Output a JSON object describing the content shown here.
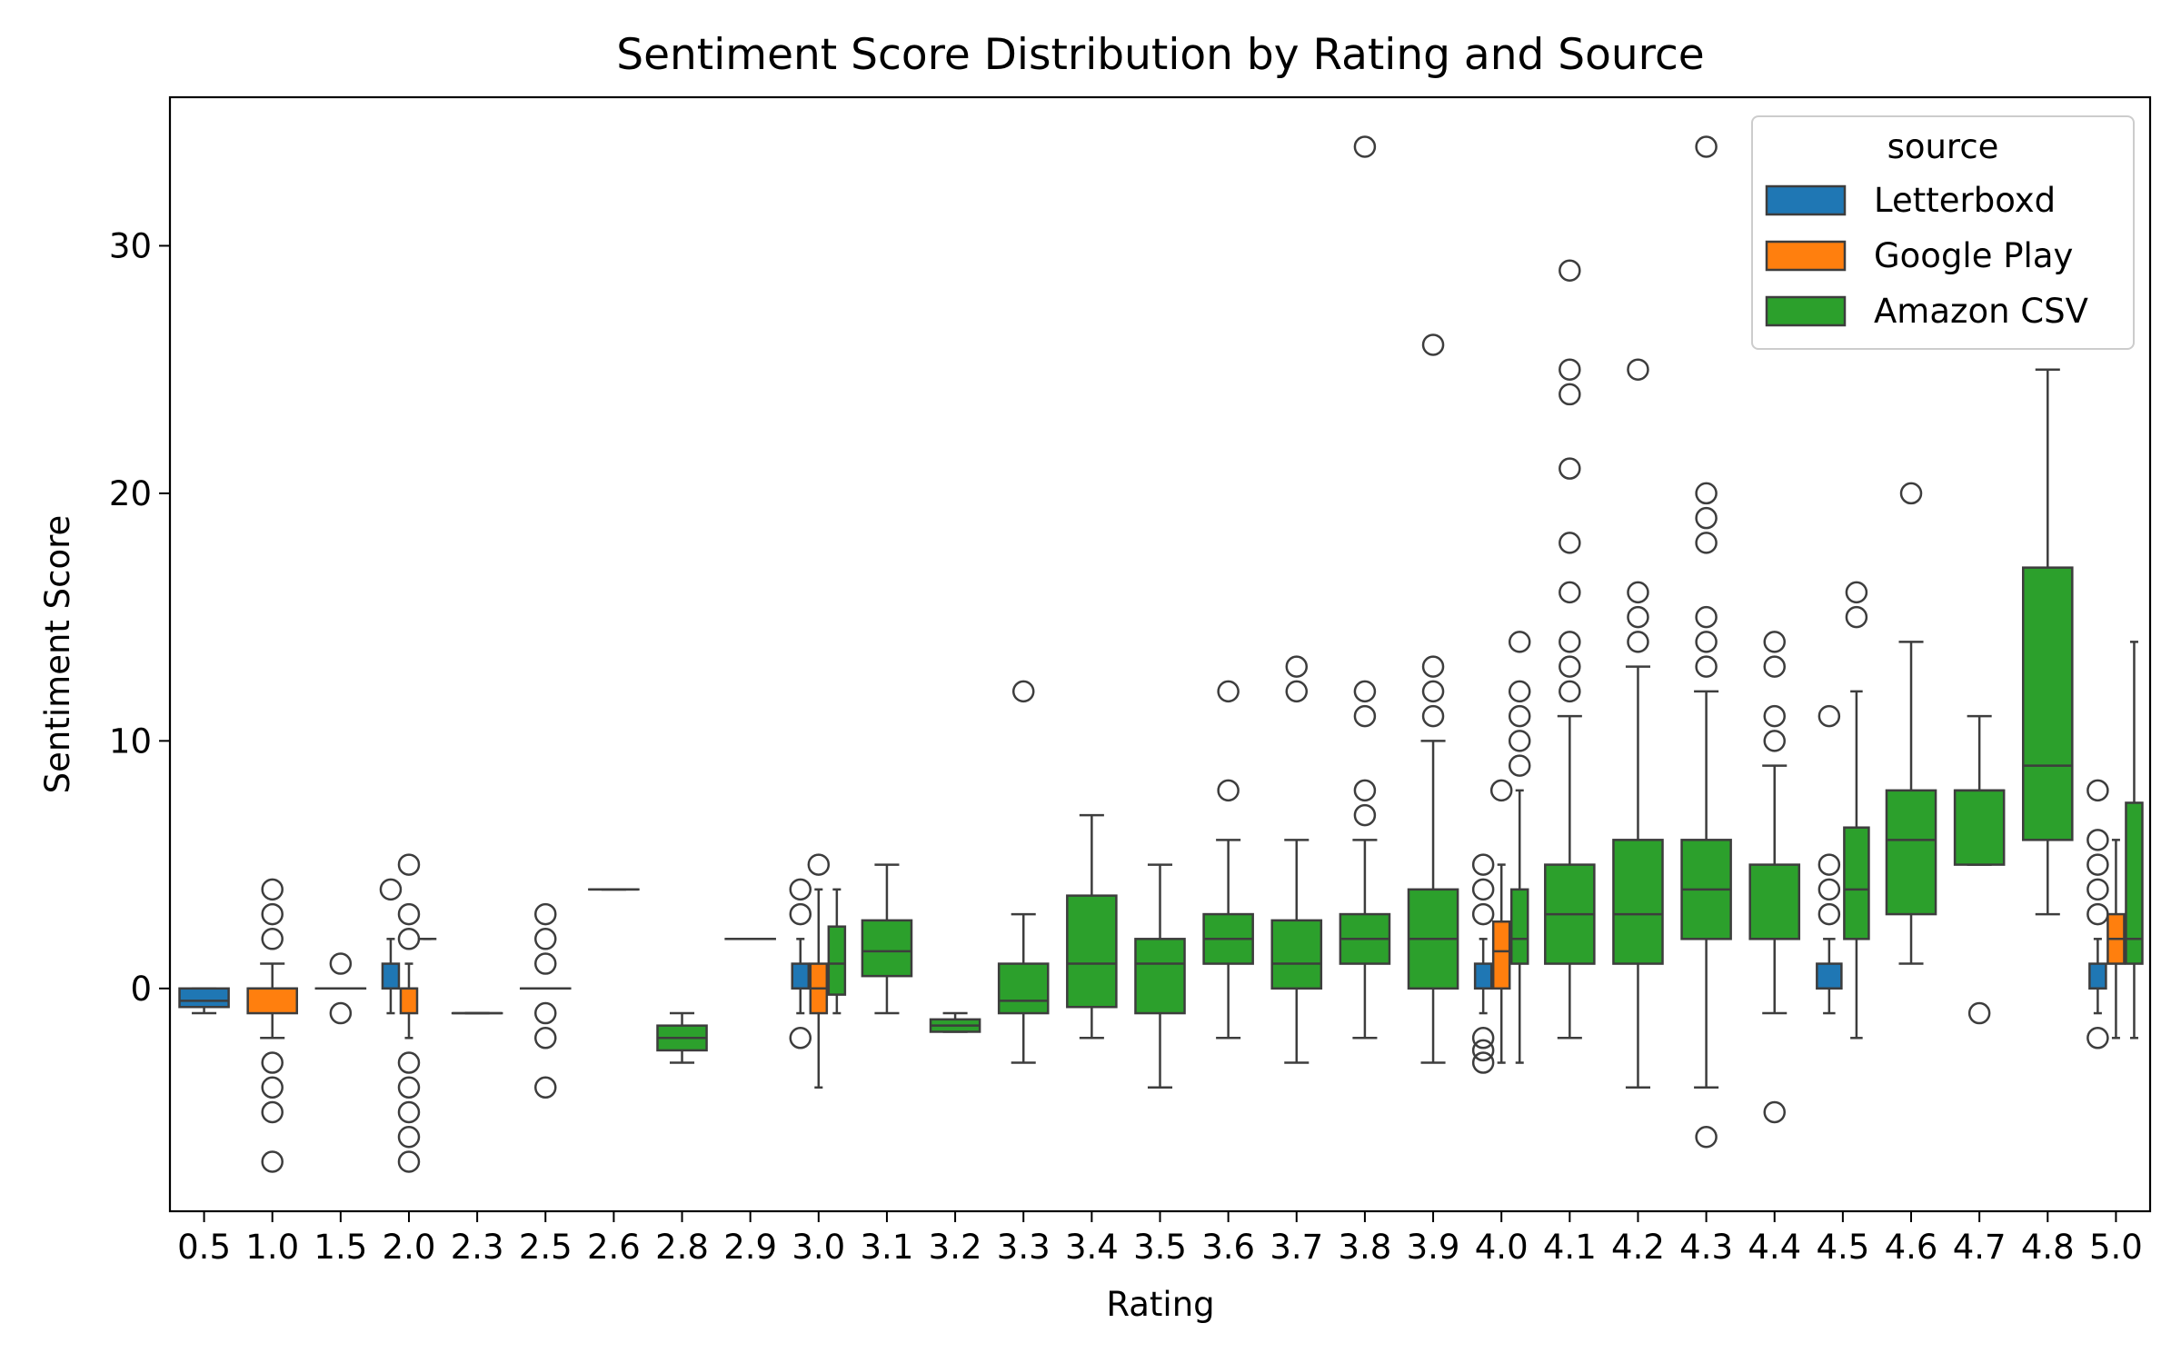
{
  "chart_data": {
    "type": "box",
    "title": "Sentiment Score Distribution by Rating and Source",
    "xlabel": "Rating",
    "ylabel": "Sentiment Score",
    "categories": [
      "0.5",
      "1.0",
      "1.5",
      "2.0",
      "2.3",
      "2.5",
      "2.6",
      "2.8",
      "2.9",
      "3.0",
      "3.1",
      "3.2",
      "3.3",
      "3.4",
      "3.5",
      "3.6",
      "3.7",
      "3.8",
      "3.9",
      "4.0",
      "4.1",
      "4.2",
      "4.3",
      "4.4",
      "4.5",
      "4.6",
      "4.7",
      "4.8",
      "5.0"
    ],
    "ylim": [
      -9,
      36
    ],
    "yticks": [
      0,
      10,
      20,
      30
    ],
    "grid": false,
    "legend": {
      "title": "source",
      "position": "top-right"
    },
    "series": [
      {
        "name": "Letterboxd",
        "color": "#1f77b4",
        "boxes": [
          {
            "category": "0.5",
            "whislo": -1,
            "q1": -0.75,
            "med": -0.5,
            "q3": 0,
            "whishi": 0,
            "fliers": []
          },
          {
            "category": "2.0",
            "whislo": -1,
            "q1": 0,
            "med": 0,
            "q3": 1,
            "whishi": 2,
            "fliers": [
              4
            ]
          },
          {
            "category": "3.0",
            "whislo": -1,
            "q1": 0,
            "med": 0,
            "q3": 1,
            "whishi": 2,
            "fliers": [
              -2,
              3,
              4
            ]
          },
          {
            "category": "4.0",
            "whislo": -1,
            "q1": 0,
            "med": 0,
            "q3": 1,
            "whishi": 2,
            "fliers": [
              -3,
              -2.5,
              -2,
              3,
              4,
              5
            ]
          },
          {
            "category": "4.5",
            "whislo": -1,
            "q1": 0,
            "med": 0,
            "q3": 1,
            "whishi": 2,
            "fliers": [
              3,
              4,
              5,
              11
            ]
          },
          {
            "category": "5.0",
            "whislo": -1,
            "q1": 0,
            "med": 0,
            "q3": 1,
            "whishi": 2,
            "fliers": [
              -2,
              3,
              4,
              5,
              6,
              8
            ]
          }
        ]
      },
      {
        "name": "Google Play",
        "color": "#ff7f0e",
        "boxes": [
          {
            "category": "1.0",
            "whislo": -2,
            "q1": -1,
            "med": 0,
            "q3": 0,
            "whishi": 1,
            "fliers": [
              -7,
              -5,
              -4,
              -3,
              2,
              3,
              4
            ]
          },
          {
            "category": "2.0",
            "whislo": -2,
            "q1": -1,
            "med": 0,
            "q3": 0,
            "whishi": 1,
            "fliers": [
              -7,
              -6,
              -5,
              -4,
              -3,
              2,
              3,
              5
            ]
          },
          {
            "category": "3.0",
            "whislo": -4,
            "q1": -1,
            "med": 0,
            "q3": 1,
            "whishi": 4,
            "fliers": [
              5
            ]
          },
          {
            "category": "4.0",
            "whislo": -3,
            "q1": 0,
            "med": 1.5,
            "q3": 2.7,
            "whishi": 5,
            "fliers": [
              8
            ]
          },
          {
            "category": "5.0",
            "whislo": -2,
            "q1": 1,
            "med": 2,
            "q3": 3,
            "whishi": 6,
            "fliers": []
          }
        ]
      },
      {
        "name": "Amazon CSV",
        "color": "#2ca02c",
        "boxes": [
          {
            "category": "1.5",
            "whislo": 0,
            "q1": 0,
            "med": 0,
            "q3": 0,
            "whishi": 0,
            "fliers": [
              -1,
              1
            ]
          },
          {
            "category": "2.0",
            "whislo": 2,
            "q1": 2,
            "med": 2,
            "q3": 2,
            "whishi": 2,
            "fliers": []
          },
          {
            "category": "2.3",
            "whislo": -1,
            "q1": -1,
            "med": -1,
            "q3": -1,
            "whishi": -1,
            "fliers": []
          },
          {
            "category": "2.5",
            "whislo": 0,
            "q1": 0,
            "med": 0,
            "q3": 0,
            "whishi": 0,
            "fliers": [
              -4,
              -2,
              -1,
              1,
              2,
              3
            ]
          },
          {
            "category": "2.6",
            "whislo": 4,
            "q1": 4,
            "med": 4,
            "q3": 4,
            "whishi": 4,
            "fliers": []
          },
          {
            "category": "2.8",
            "whislo": -3,
            "q1": -2.5,
            "med": -2,
            "q3": -1.5,
            "whishi": -1,
            "fliers": []
          },
          {
            "category": "2.9",
            "whislo": 2,
            "q1": 2,
            "med": 2,
            "q3": 2,
            "whishi": 2,
            "fliers": []
          },
          {
            "category": "3.0",
            "whislo": -1,
            "q1": -0.25,
            "med": 1,
            "q3": 2.5,
            "whishi": 4,
            "fliers": []
          },
          {
            "category": "3.1",
            "whislo": -1,
            "q1": 0.5,
            "med": 1.5,
            "q3": 2.75,
            "whishi": 5,
            "fliers": []
          },
          {
            "category": "3.2",
            "whislo": -1.75,
            "q1": -1.75,
            "med": -1.5,
            "q3": -1.25,
            "whishi": -1,
            "fliers": []
          },
          {
            "category": "3.3",
            "whislo": -3,
            "q1": -1,
            "med": -0.5,
            "q3": 1,
            "whishi": 3,
            "fliers": [
              12
            ]
          },
          {
            "category": "3.4",
            "whislo": -2,
            "q1": -0.75,
            "med": 1,
            "q3": 3.75,
            "whishi": 7,
            "fliers": []
          },
          {
            "category": "3.5",
            "whislo": -4,
            "q1": -1,
            "med": 1,
            "q3": 2,
            "whishi": 5,
            "fliers": []
          },
          {
            "category": "3.6",
            "whislo": -2,
            "q1": 1,
            "med": 2,
            "q3": 3,
            "whishi": 6,
            "fliers": [
              8,
              12
            ]
          },
          {
            "category": "3.7",
            "whislo": -3,
            "q1": 0,
            "med": 1,
            "q3": 2.75,
            "whishi": 6,
            "fliers": [
              12,
              13
            ]
          },
          {
            "category": "3.8",
            "whislo": -2,
            "q1": 1,
            "med": 2,
            "q3": 3,
            "whishi": 6,
            "fliers": [
              7,
              8,
              11,
              12,
              34
            ]
          },
          {
            "category": "3.9",
            "whislo": -3,
            "q1": 0,
            "med": 2,
            "q3": 4,
            "whishi": 10,
            "fliers": [
              11,
              12,
              13,
              26
            ]
          },
          {
            "category": "4.0",
            "whislo": -3,
            "q1": 1,
            "med": 2,
            "q3": 4,
            "whishi": 8,
            "fliers": [
              9,
              10,
              11,
              12,
              14
            ]
          },
          {
            "category": "4.1",
            "whislo": -2,
            "q1": 1,
            "med": 3,
            "q3": 5,
            "whishi": 11,
            "fliers": [
              12,
              13,
              14,
              16,
              18,
              21,
              24,
              25,
              29
            ]
          },
          {
            "category": "4.2",
            "whislo": -4,
            "q1": 1,
            "med": 3,
            "q3": 6,
            "whishi": 13,
            "fliers": [
              14,
              15,
              16,
              25
            ]
          },
          {
            "category": "4.3",
            "whislo": -4,
            "q1": 2,
            "med": 4,
            "q3": 6,
            "whishi": 12,
            "fliers": [
              -6,
              13,
              14,
              15,
              18,
              19,
              20,
              34
            ]
          },
          {
            "category": "4.4",
            "whislo": -1,
            "q1": 2,
            "med": 2,
            "q3": 5,
            "whishi": 9,
            "fliers": [
              -5,
              10,
              11,
              13,
              14
            ]
          },
          {
            "category": "4.5",
            "whislo": -2,
            "q1": 2,
            "med": 4,
            "q3": 6.5,
            "whishi": 12,
            "fliers": [
              15,
              16
            ]
          },
          {
            "category": "4.6",
            "whislo": 1,
            "q1": 3,
            "med": 6,
            "q3": 8,
            "whishi": 14,
            "fliers": [
              20
            ]
          },
          {
            "category": "4.7",
            "whislo": 5,
            "q1": 5,
            "med": 8,
            "q3": 8,
            "whishi": 11,
            "fliers": [
              -1
            ]
          },
          {
            "category": "4.8",
            "whislo": 3,
            "q1": 6,
            "med": 9,
            "q3": 17,
            "whishi": 25,
            "fliers": []
          },
          {
            "category": "5.0",
            "whislo": -2,
            "q1": 1,
            "med": 2,
            "q3": 7.5,
            "whishi": 14,
            "fliers": []
          }
        ]
      }
    ]
  }
}
